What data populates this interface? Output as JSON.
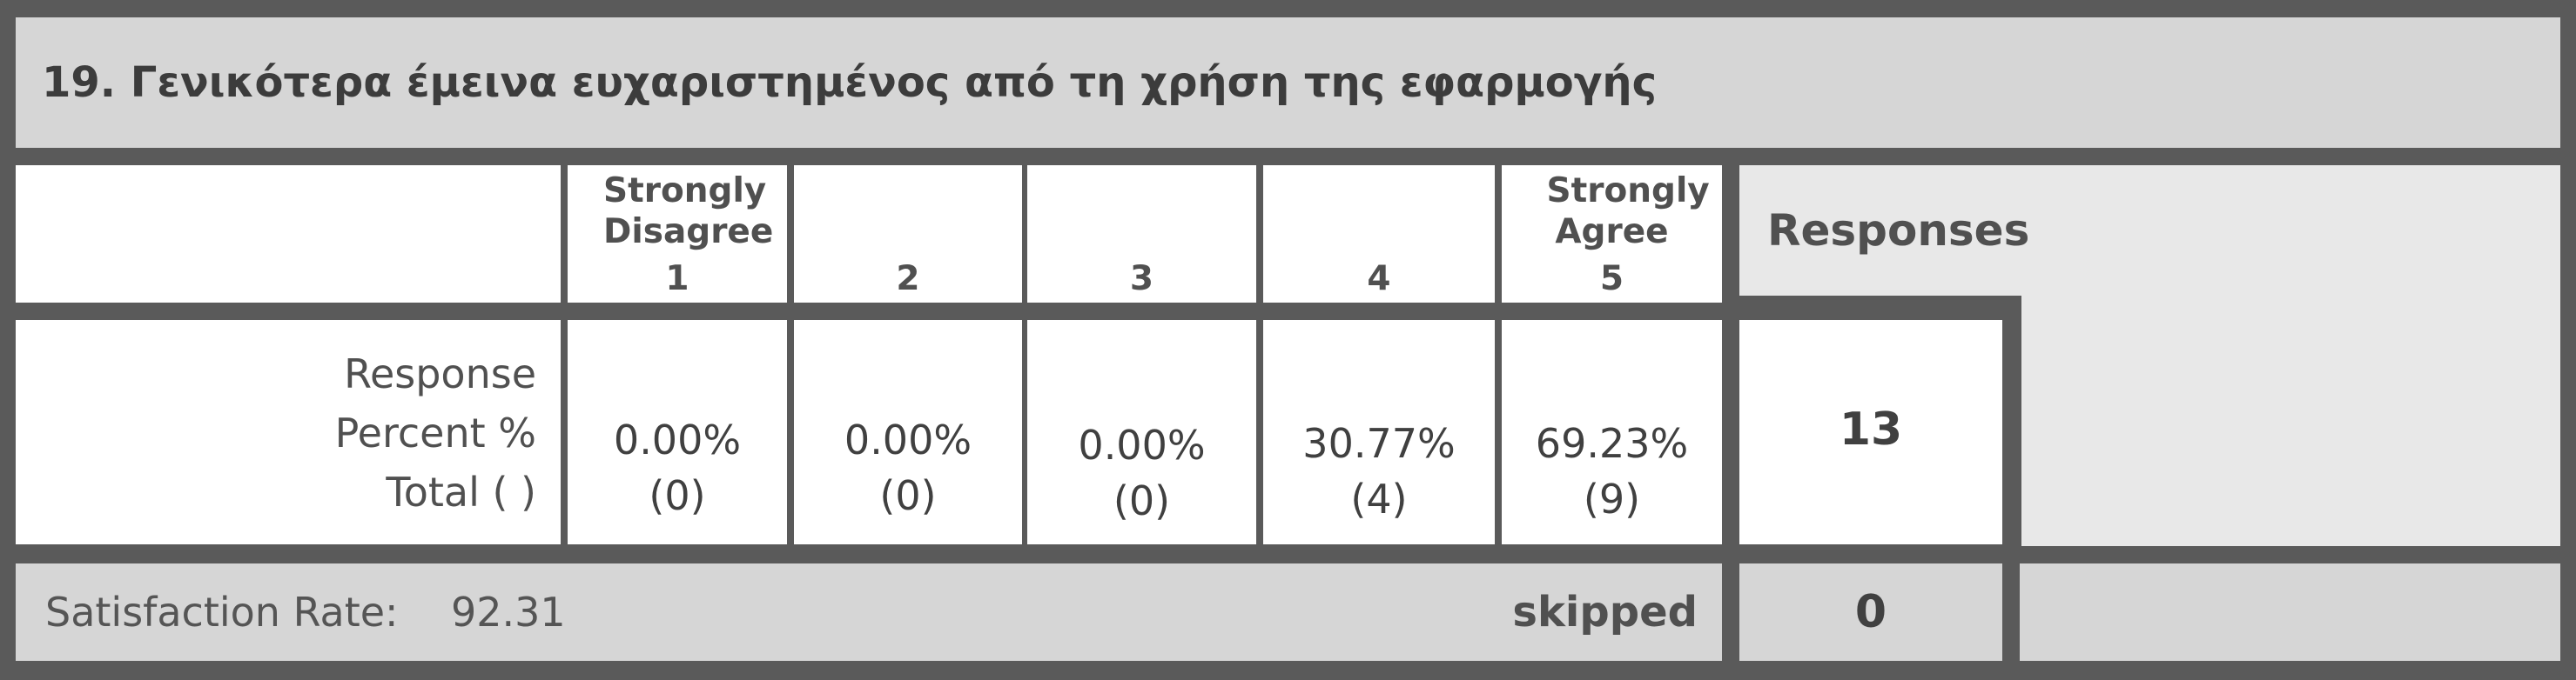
{
  "title": "19. Γενικότερα έμεινα ευχαριστημένος από τη χρήση της εφαρμογής",
  "columns": [
    {
      "label": "Strongly Disagree",
      "number": "1"
    },
    {
      "label": "",
      "number": "2"
    },
    {
      "label": "",
      "number": "3"
    },
    {
      "label": "",
      "number": "4"
    },
    {
      "label": "Strongly Agree",
      "number": "5"
    }
  ],
  "responses_header": "Responses",
  "row_labels": [
    "Response",
    "Percent %",
    "Total ( )"
  ],
  "cells": [
    {
      "percent": "0.00%",
      "count": "(0)"
    },
    {
      "percent": "0.00%",
      "count": "(0)"
    },
    {
      "percent": "0.00%",
      "count": "(0)"
    },
    {
      "percent": "30.77%",
      "count": "(4)"
    },
    {
      "percent": "69.23%",
      "count": "(9)"
    }
  ],
  "responses_total": "13",
  "footer": {
    "satisfaction_label": "Satisfaction Rate:",
    "satisfaction_value": "92.31",
    "skipped_label": "skipped",
    "skipped_value": "0"
  }
}
